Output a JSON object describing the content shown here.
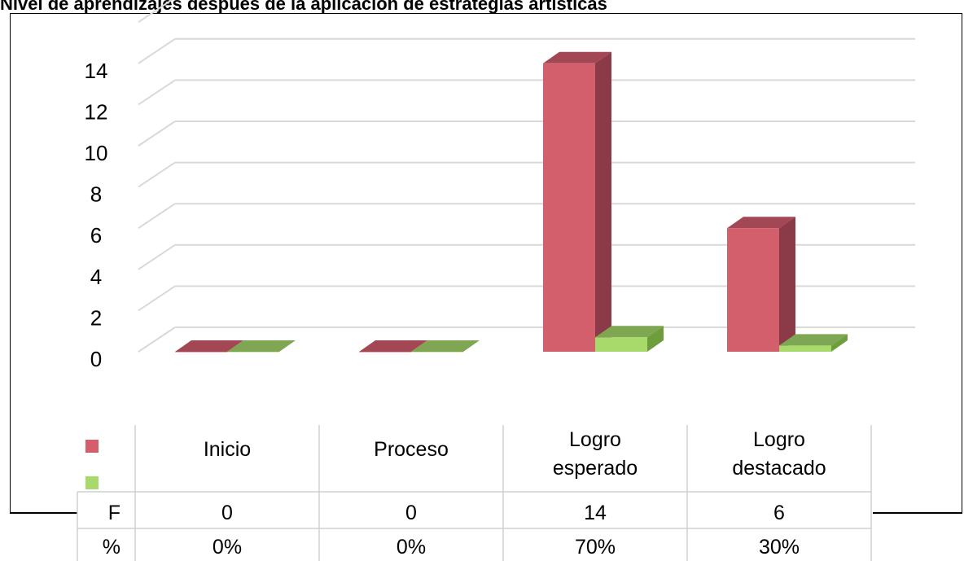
{
  "caption": "Nivel de aprendizajes después de la aplicación de estrategias artísticas",
  "colors": {
    "series_1": "#d35f6c",
    "series_1_side": "#8b3a47",
    "series_1_top": "#a34755",
    "series_2": "#a8d96b",
    "series_2_side": "#6e9e3c",
    "series_2_top": "#7ea653",
    "grid": "#d9d9d9",
    "table_line": "#d0d0d0"
  },
  "chart_data": {
    "type": "bar",
    "title": "",
    "xlabel": "",
    "ylabel": "",
    "ylim": [
      0,
      14
    ],
    "y_ticks": [
      0,
      2,
      4,
      6,
      8,
      10,
      12,
      14
    ],
    "categories": [
      "Inicio",
      "Proceso",
      "Logro esperado",
      "Logro destacado"
    ],
    "category_label_lines": [
      [
        "Inicio"
      ],
      [
        "Proceso"
      ],
      [
        "Logro",
        "esperado"
      ],
      [
        "Logro",
        "destacado"
      ]
    ],
    "series": [
      {
        "name": "F",
        "values": [
          0,
          0,
          14,
          6
        ]
      },
      {
        "name": "%",
        "values": [
          0,
          0,
          0.7,
          0.3
        ]
      }
    ],
    "data_table": {
      "rows": [
        {
          "label": "F",
          "cells": [
            "0",
            "0",
            "14",
            "6"
          ]
        },
        {
          "label": "%",
          "cells": [
            "0%",
            "0%",
            "70%",
            "30%"
          ]
        }
      ]
    },
    "grid": true,
    "legend": "table-keys"
  }
}
